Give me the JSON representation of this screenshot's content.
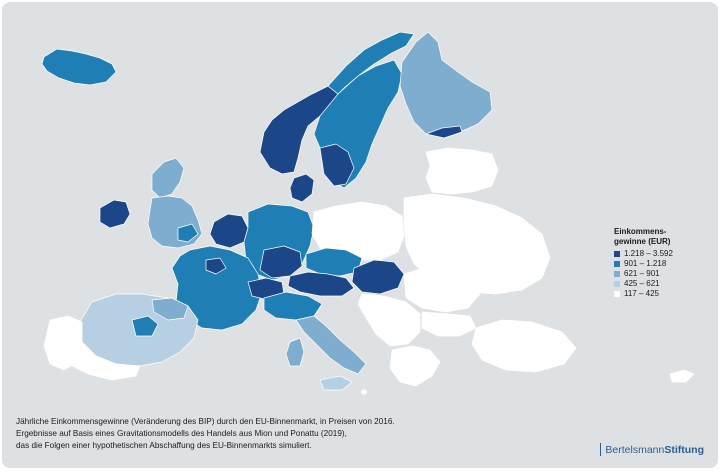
{
  "colors": {
    "background": "#dde1e4",
    "class_1": "#1b4788",
    "class_2": "#1f7fb4",
    "class_3": "#7eadcf",
    "class_4": "#b6cfe3",
    "class_5": "#ffffff",
    "brand": "#2b5f8f"
  },
  "legend": {
    "title": "Einkommens-\ngewinne (EUR)",
    "items": [
      {
        "label": "1.218 – 3.592",
        "color": "#1b4788"
      },
      {
        "label": "901 – 1.218",
        "color": "#1f7fb4"
      },
      {
        "label": "621 – 901",
        "color": "#7eadcf"
      },
      {
        "label": "425 – 621",
        "color": "#b6cfe3"
      },
      {
        "label": "117 – 425",
        "color": "#ffffff"
      }
    ]
  },
  "caption": {
    "line1": "Jährliche Einkommensgewinne (Veränderung des BIP) durch den EU-Binnenmarkt, in Preisen von 2016.",
    "line2": "Ergebnisse auf Basis eines Gravitationsmodells des Handels aus Mion und Ponattu (2019),",
    "line3": "das die Folgen einer hypothetischen Abschaffung des EU-Binnenmarkts simuliert."
  },
  "brand": {
    "part1": "Bertelsmann",
    "part2": "Stiftung"
  }
}
